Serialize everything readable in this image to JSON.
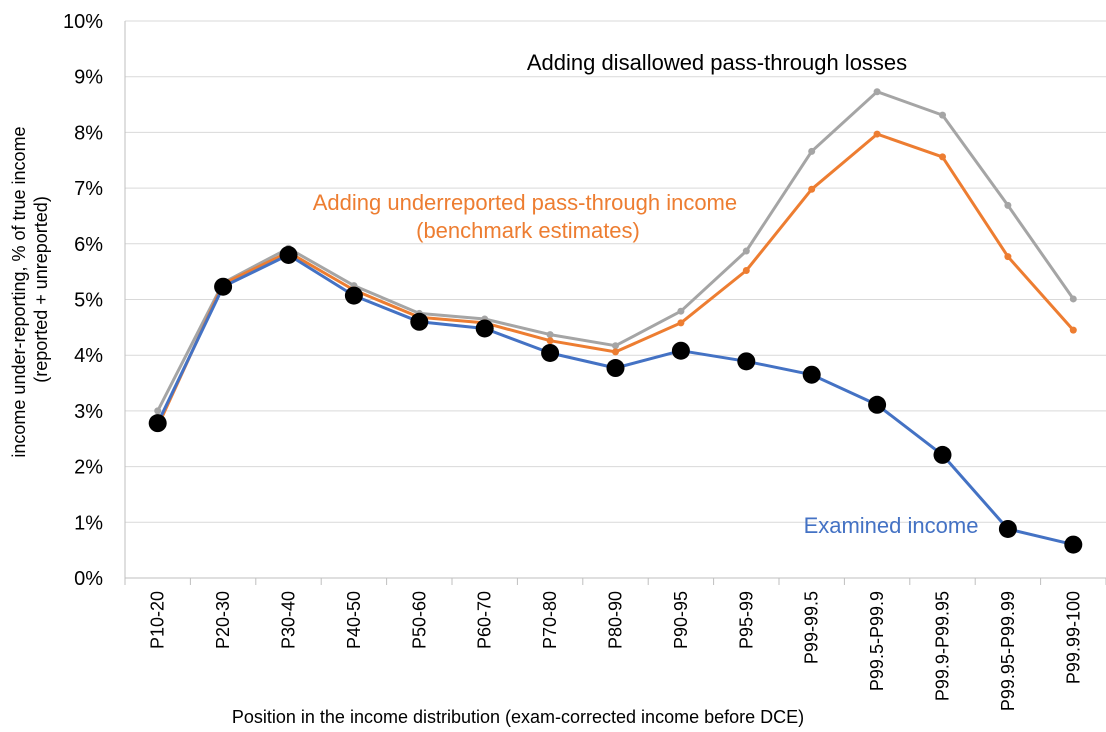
{
  "chart_data": {
    "type": "line",
    "xlabel": "Position in the income distribution (exam-corrected income before DCE)",
    "ylabel_line1": "income under-reporting, % of true income",
    "ylabel_line2": "(reported + unreported)",
    "ylim": [
      0,
      10
    ],
    "yticks": [
      "0%",
      "1%",
      "2%",
      "3%",
      "4%",
      "5%",
      "6%",
      "7%",
      "8%",
      "9%",
      "10%"
    ],
    "grid": true,
    "legend": "none (series labeled by in-chart annotations)",
    "categories": [
      "P10-20",
      "P20-30",
      "P30-40",
      "P40-50",
      "P50-60",
      "P60-70",
      "P70-80",
      "P80-90",
      "P90-95",
      "P95-99",
      "P99-99.5",
      "P99.5-P99.9",
      "P99.9-P99.95",
      "P99.95-P99.99",
      "P99.99-100"
    ],
    "series": [
      {
        "key": "disallowed",
        "label": "Adding disallowed pass-through losses",
        "color": "#a5a5a5",
        "values": [
          3.0,
          5.3,
          5.92,
          5.25,
          4.75,
          4.65,
          4.37,
          4.17,
          4.79,
          5.87,
          7.66,
          8.73,
          8.31,
          6.69,
          5.01
        ]
      },
      {
        "key": "underreported",
        "label_line1": "Adding underreported pass-through income",
        "label_line2": "(benchmark estimates)",
        "color": "#ed7d31",
        "values": [
          2.72,
          5.28,
          5.85,
          5.17,
          4.68,
          4.58,
          4.26,
          4.06,
          4.58,
          5.52,
          6.98,
          7.97,
          7.56,
          5.77,
          4.45
        ]
      },
      {
        "key": "examined",
        "label": "Examined income",
        "color": "#4472c4",
        "values": [
          2.78,
          5.23,
          5.8,
          5.07,
          4.6,
          4.48,
          4.04,
          3.77,
          4.08,
          3.89,
          3.65,
          3.11,
          2.21,
          0.88,
          0.6
        ]
      }
    ]
  }
}
